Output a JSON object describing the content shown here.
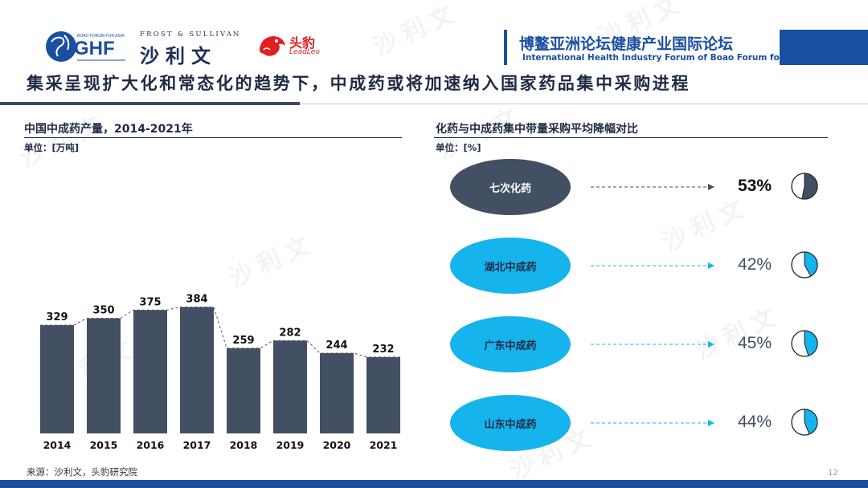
{
  "header": {
    "ghf_logo_text": "GHF",
    "ghf_logo_small": "BOAO FORUM FOR ASIA",
    "frost_en": "FROST & SULLIVAN",
    "frost_cn": "沙利文",
    "leadleo_cn": "头豹",
    "leadleo_en": "LeadLeo",
    "forum_cn": "博鳌亚洲论坛健康产业国际论坛",
    "forum_en": "International Health Industry Forum of Boao Forum for Asia"
  },
  "title": "集采呈现扩大化和常态化的趋势下，中成药或将加速纳入国家药品集中采购进程",
  "watermark_text": "沙利文",
  "left_panel": {
    "subtitle": "中国中成药产量，2014-2021年",
    "unit": "单位：[万吨]"
  },
  "right_panel": {
    "subtitle": "化药与中成药集中带量采购平均降幅对比",
    "unit": "单位：[%]",
    "items": [
      {
        "label": "七次化药",
        "value": 53,
        "value_text": "53%"
      },
      {
        "label": "湖北中成药",
        "value": 42,
        "value_text": "42%"
      },
      {
        "label": "广东中成药",
        "value": 45,
        "value_text": "45%"
      },
      {
        "label": "山东中成药",
        "value": 44,
        "value_text": "44%"
      }
    ]
  },
  "colors": {
    "bar": "#434f63",
    "dark_oval": "#434f63",
    "light_oval": "#16b4ec",
    "accent_blue": "#1a4fa0"
  },
  "footer": {
    "source": "来源：沙利文，头豹研究院",
    "page_number": "12"
  },
  "chart_data": {
    "type": "bar",
    "categories": [
      "2014",
      "2015",
      "2016",
      "2017",
      "2018",
      "2019",
      "2020",
      "2021"
    ],
    "values": [
      329,
      350,
      375,
      384,
      259,
      282,
      244,
      232
    ],
    "title": "中国中成药产量，2014-2021年",
    "ylabel": "单位：[万吨]",
    "ylim": [
      0,
      400
    ],
    "grid": false,
    "data_labels": true,
    "trend_line": "dashed"
  }
}
